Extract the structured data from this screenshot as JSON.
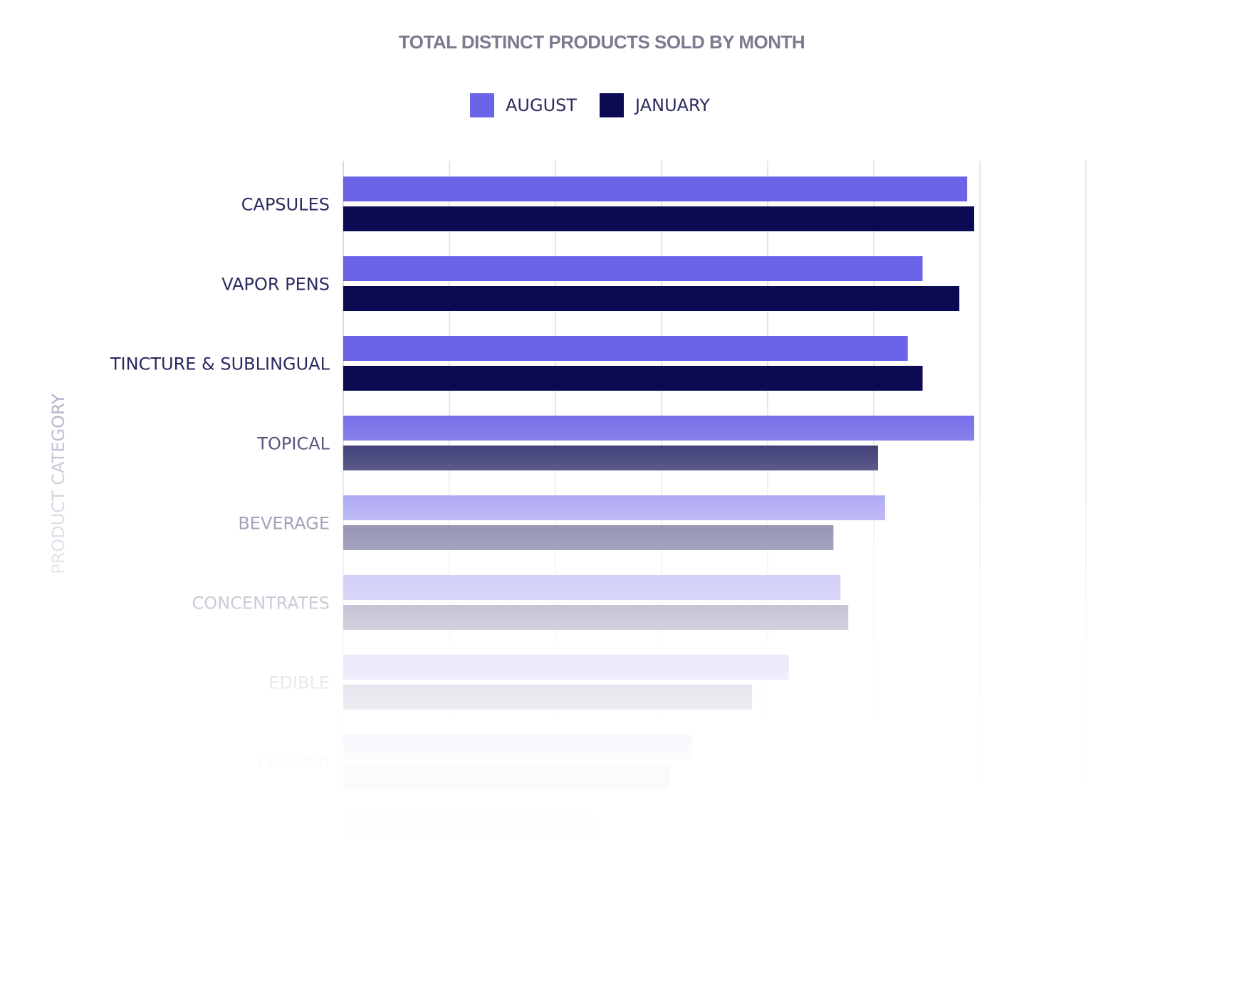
{
  "chart_data": {
    "type": "bar",
    "orientation": "horizontal",
    "title": "TOTAL DISTINCT PRODUCTS SOLD BY MONTH",
    "ylabel": "PRODUCT CATEGORY",
    "xlabel": "",
    "categories": [
      "CAPSULES",
      "VAPOR PENS",
      "TINCTURE & SUBLINGUAL",
      "TOPICAL",
      "BEVERAGE",
      "CONCENTRATES",
      "EDIBLE",
      "FLOWER",
      ""
    ],
    "series": [
      {
        "name": "AUGUST",
        "color": "#6b63e8",
        "values": [
          88.2,
          81.9,
          79.8,
          89.2,
          76.6,
          70.3,
          63.0,
          49.3,
          35.5
        ]
      },
      {
        "name": "JANUARY",
        "color": "#0b0a52",
        "values": [
          89.2,
          87.1,
          81.9,
          75.6,
          69.3,
          71.4,
          57.8,
          46.2,
          null
        ]
      }
    ],
    "xlim": [
      0,
      105
    ],
    "grid": true,
    "legend": "top-center"
  }
}
